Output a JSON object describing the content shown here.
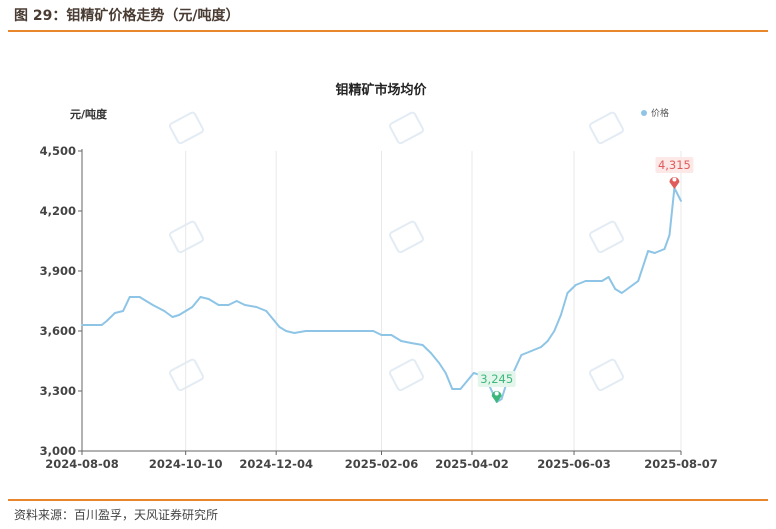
{
  "figure": {
    "title": "图 29：钼精矿价格走势（元/吨度）",
    "source": "资料来源：百川盈孚，天风证券研究所"
  },
  "chart_data": {
    "type": "line",
    "title": "钼精矿市场均价",
    "ylabel": "元/吨度",
    "xlabel": "",
    "ylim": [
      3000,
      4500
    ],
    "yticks": [
      3000,
      3300,
      3600,
      3900,
      4200,
      4500
    ],
    "ytick_labels": [
      "3,000",
      "3,300",
      "3,600",
      "3,900",
      "4,200",
      "4,500"
    ],
    "xtick_labels": [
      "2024-08-08",
      "2024-10-10",
      "2024-12-04",
      "2025-02-06",
      "2025-04-02",
      "2025-06-03",
      "2025-08-07"
    ],
    "grid": "vertical",
    "legend": "top-right",
    "series": [
      {
        "name": "价格",
        "color": "#8ec5e6",
        "x": [
          "2024-08-08",
          "2024-08-15",
          "2024-08-20",
          "2024-08-23",
          "2024-08-28",
          "2024-09-02",
          "2024-09-06",
          "2024-09-12",
          "2024-09-20",
          "2024-09-27",
          "2024-10-02",
          "2024-10-06",
          "2024-10-10",
          "2024-10-14",
          "2024-10-19",
          "2024-10-24",
          "2024-10-30",
          "2024-11-05",
          "2024-11-10",
          "2024-11-15",
          "2024-11-22",
          "2024-11-28",
          "2024-12-02",
          "2024-12-06",
          "2024-12-10",
          "2024-12-15",
          "2024-12-22",
          "2025-01-05",
          "2025-01-20",
          "2025-02-01",
          "2025-02-06",
          "2025-02-12",
          "2025-02-18",
          "2025-02-24",
          "2025-03-03",
          "2025-03-08",
          "2025-03-13",
          "2025-03-17",
          "2025-03-21",
          "2025-03-26",
          "2025-03-30",
          "2025-04-03",
          "2025-04-07",
          "2025-04-10",
          "2025-04-14",
          "2025-04-17",
          "2025-04-20",
          "2025-04-23",
          "2025-04-27",
          "2025-05-02",
          "2025-05-08",
          "2025-05-14",
          "2025-05-18",
          "2025-05-22",
          "2025-05-26",
          "2025-05-30",
          "2025-06-04",
          "2025-06-10",
          "2025-06-16",
          "2025-06-20",
          "2025-06-24",
          "2025-06-28",
          "2025-07-02",
          "2025-07-07",
          "2025-07-12",
          "2025-07-18",
          "2025-07-22",
          "2025-07-25",
          "2025-07-28",
          "2025-07-31",
          "2025-08-03",
          "2025-08-07"
        ],
        "values": [
          3630,
          3630,
          3630,
          3650,
          3690,
          3700,
          3770,
          3770,
          3730,
          3700,
          3670,
          3680,
          3700,
          3720,
          3770,
          3760,
          3730,
          3730,
          3750,
          3730,
          3720,
          3700,
          3660,
          3620,
          3600,
          3590,
          3600,
          3600,
          3600,
          3600,
          3580,
          3580,
          3550,
          3540,
          3530,
          3490,
          3440,
          3390,
          3310,
          3310,
          3350,
          3390,
          3380,
          3370,
          3300,
          3245,
          3260,
          3340,
          3390,
          3480,
          3500,
          3520,
          3550,
          3600,
          3680,
          3790,
          3830,
          3850,
          3850,
          3850,
          3870,
          3810,
          3790,
          3820,
          3850,
          4000,
          3990,
          4000,
          4010,
          4080,
          4315,
          4250
        ]
      }
    ],
    "annotations": [
      {
        "label": "4,315",
        "x": "2025-08-03",
        "y": 4315,
        "kind": "max",
        "color": "#e05c5c"
      },
      {
        "label": "3,245",
        "x": "2025-04-17",
        "y": 3245,
        "kind": "min",
        "color": "#3db87a"
      }
    ]
  }
}
